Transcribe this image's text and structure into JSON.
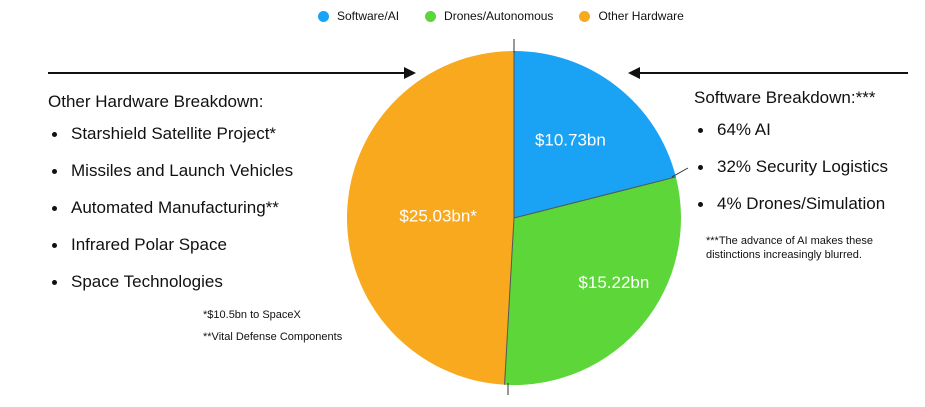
{
  "legend": {
    "items": [
      {
        "label": "Software/AI",
        "color": "#1AA3F5"
      },
      {
        "label": "Drones/Autonomous",
        "color": "#5DD63A"
      },
      {
        "label": "Other Hardware",
        "color": "#F9A91D"
      }
    ]
  },
  "left_panel": {
    "title": "Other Hardware Breakdown:",
    "items": [
      "Starshield Satellite Project*",
      "Missiles and Launch Vehicles",
      "Automated Manufacturing**",
      "Infrared Polar Space",
      "Space Technologies"
    ],
    "footnotes": [
      "*$10.5bn to SpaceX",
      "**Vital Defense Components"
    ]
  },
  "right_panel": {
    "title": "Software Breakdown:***",
    "items": [
      "64% AI",
      "32% Security Logistics",
      "4% Drones/Simulation"
    ],
    "footnote": "***The advance of AI makes these distinctions increasingly blurred."
  },
  "chart_data": {
    "type": "pie",
    "labels": [
      "Software/AI",
      "Drones/Autonomous",
      "Other Hardware"
    ],
    "values": [
      10.73,
      15.22,
      25.03
    ],
    "value_labels": [
      "$10.73bn",
      "$15.22bn",
      "$25.03bn*"
    ],
    "colors": [
      "#1AA3F5",
      "#5DD63A",
      "#F9A91D"
    ],
    "legend_position": "top"
  }
}
